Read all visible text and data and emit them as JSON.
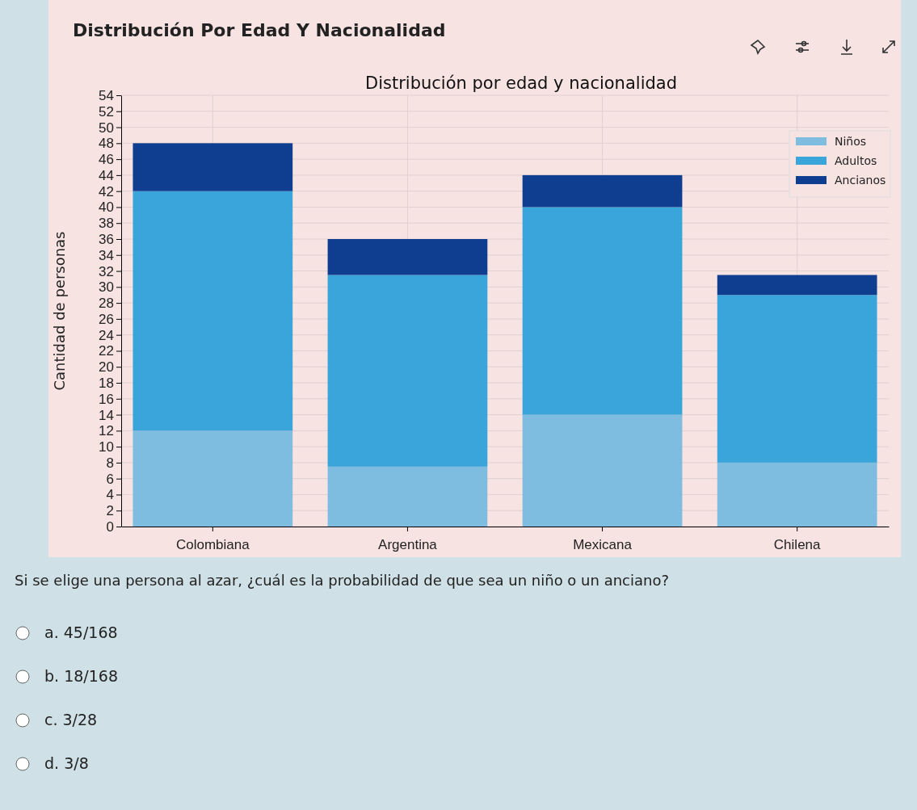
{
  "chart_data": {
    "type": "bar",
    "title": "Distribución por edad y nacionalidad",
    "subtitle": "Distribución Por Edad Y Nacionalidad",
    "ylabel": "Cantidad de personas",
    "categories": [
      "Colombiana",
      "Argentina",
      "Mexicana",
      "Chilena"
    ],
    "series": [
      {
        "name": "Niños",
        "color": "#7fbde0",
        "values": [
          12,
          7.5,
          14,
          8
        ]
      },
      {
        "name": "Adultos",
        "color": "#3aa5db",
        "values": [
          30,
          24,
          26,
          21
        ]
      },
      {
        "name": "Ancianos",
        "color": "#0f3d8f",
        "values": [
          6,
          4.5,
          4,
          2.5
        ]
      }
    ],
    "stacked": true,
    "ylim": [
      0,
      54
    ],
    "yticks": [
      0,
      2,
      4,
      6,
      8,
      10,
      12,
      14,
      16,
      18,
      20,
      22,
      24,
      26,
      28,
      30,
      32,
      34,
      36,
      38,
      40,
      42,
      44,
      46,
      48,
      50,
      52,
      54
    ],
    "grid": true,
    "legend": "top right",
    "annotations": [
      "Si se elige una persona al azar, ¿cuál es la probabilidad de que sea un niño o un anciano?",
      "a.  45/168",
      "b.  18/168",
      "c.  3/28",
      "d.  3/8"
    ]
  }
}
